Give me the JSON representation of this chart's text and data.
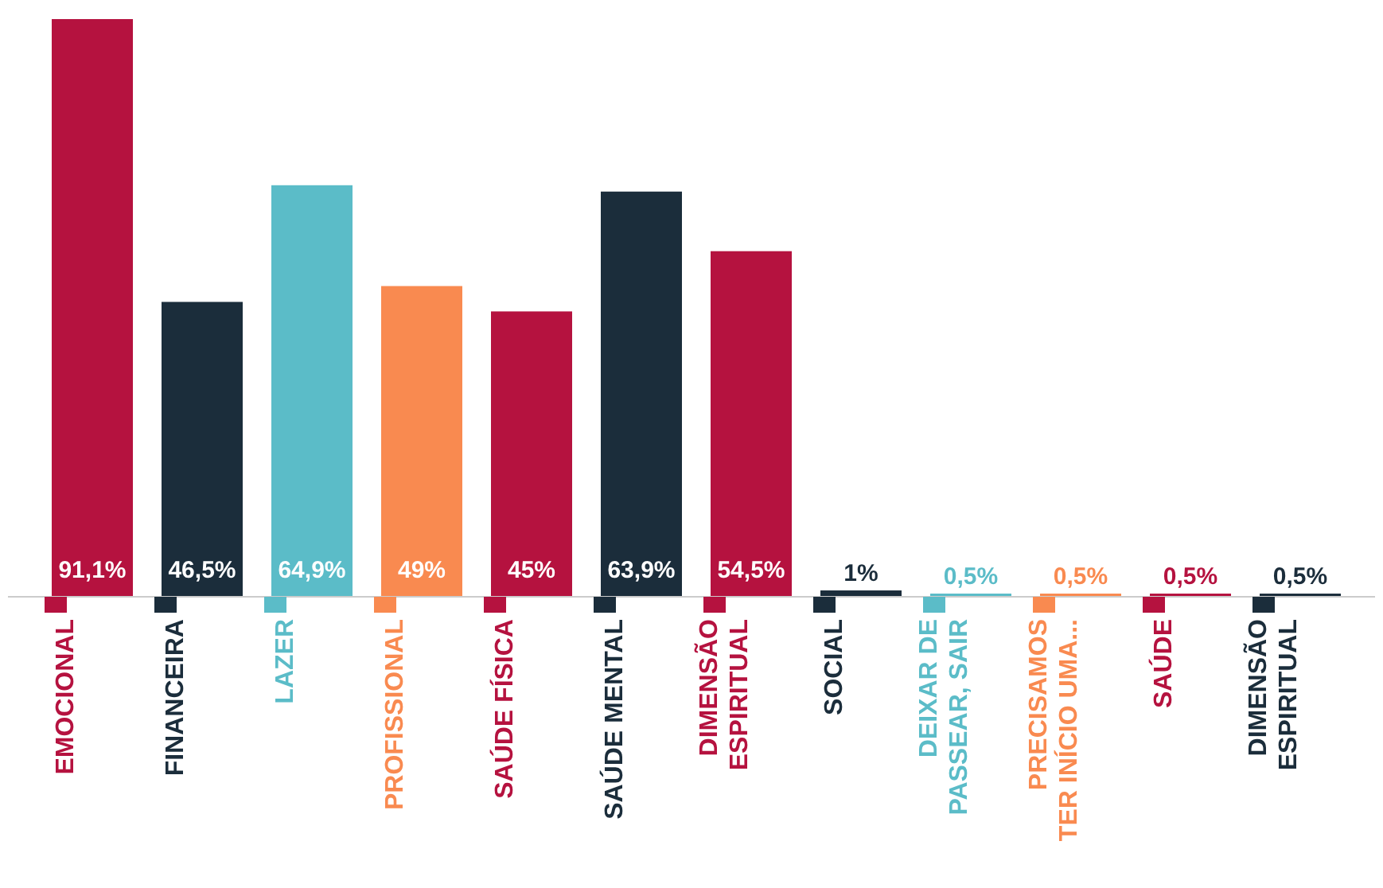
{
  "chart_data": {
    "type": "bar",
    "categories": [
      "EMOCIONAL",
      "FINANCEIRA",
      "LAZER",
      "PROFISSIONAL",
      "SAÚDE FÍSICA",
      "SAÚDE MENTAL",
      "DIMENSÃO ESPIRITUAL",
      "SOCIAL",
      "DEIXAR DE PASSEAR, SAIR",
      "PRECISAMOS TER INÍCIO UMA...",
      "SAÚDE",
      "DIMENSÃO ESPIRITUAL"
    ],
    "values": [
      91.1,
      46.5,
      64.9,
      49,
      45,
      63.9,
      54.5,
      1,
      0.5,
      0.5,
      0.5,
      0.5
    ],
    "value_labels": [
      "91,1%",
      "46,5%",
      "64,9%",
      "49%",
      "45%",
      "63,9%",
      "54,5%",
      "1%",
      "0,5%",
      "0,5%",
      "0,5%",
      "0,5%"
    ],
    "colors": [
      "#b5123f",
      "#1b2d3b",
      "#5bbcc8",
      "#f98a50",
      "#b5123f",
      "#1b2d3b",
      "#b5123f",
      "#1b2d3b",
      "#5bbcc8",
      "#f98a50",
      "#b5123f",
      "#1b2d3b"
    ]
  }
}
